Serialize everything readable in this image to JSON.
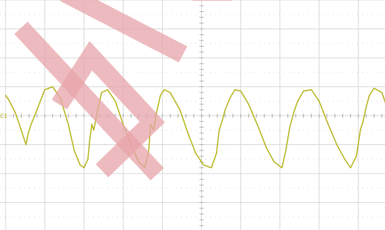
{
  "chart_data": {
    "type": "line",
    "title": "",
    "xlabel": "",
    "ylabel": "",
    "grid": true,
    "xlim": [
      0,
      10
    ],
    "ylim": [
      -4,
      4
    ],
    "divisions": {
      "x": 10,
      "y": 8
    },
    "series": [
      {
        "channel_marker": "C1",
        "color": "#b5b31a",
        "x": [
          0.0,
          0.08,
          0.25,
          0.4,
          0.52,
          0.55,
          0.58,
          0.65,
          0.8,
          1.0,
          1.2,
          1.4,
          1.6,
          1.75,
          1.9,
          2.0,
          2.1,
          2.15,
          2.2,
          2.25,
          2.35,
          2.45,
          2.6,
          2.8,
          3.0,
          3.2,
          3.4,
          3.55,
          3.65,
          3.7,
          3.78,
          3.85,
          3.95,
          4.05,
          4.2,
          4.45,
          4.65,
          4.85,
          5.05,
          5.25,
          5.38,
          5.45,
          5.52,
          5.6,
          5.72,
          5.85,
          6.0,
          6.2,
          6.45,
          6.65,
          6.85,
          7.05,
          7.15,
          7.25,
          7.35,
          7.45,
          7.6,
          7.8,
          8.0,
          8.2,
          8.45,
          8.65,
          8.8,
          8.95,
          9.05,
          9.12,
          9.2,
          9.28,
          9.4,
          9.6,
          9.8,
          9.95,
          10.0
        ],
        "y": [
          0.7,
          0.55,
          0.1,
          -0.5,
          -1.0,
          -0.8,
          -0.6,
          -0.3,
          0.2,
          0.9,
          1.0,
          0.6,
          -0.3,
          -1.2,
          -1.7,
          -1.8,
          -1.5,
          -0.8,
          -0.3,
          -0.5,
          0.2,
          0.8,
          0.9,
          0.5,
          -0.3,
          -1.0,
          -1.6,
          -1.8,
          -1.2,
          -0.3,
          -0.5,
          0.1,
          0.7,
          0.9,
          0.8,
          0.2,
          -0.6,
          -1.3,
          -1.7,
          -1.8,
          -1.3,
          -0.5,
          -0.2,
          0.2,
          0.6,
          0.9,
          0.85,
          0.4,
          -0.4,
          -1.1,
          -1.6,
          -1.8,
          -1.2,
          -0.4,
          0.1,
          0.5,
          0.85,
          0.9,
          0.5,
          -0.2,
          -1.0,
          -1.5,
          -1.8,
          -1.4,
          -0.5,
          -0.2,
          0.3,
          0.7,
          0.95,
          0.8,
          0.0,
          -0.9,
          -0.8
        ]
      }
    ]
  },
  "watermark": {
    "color": "#e7a4a9"
  }
}
